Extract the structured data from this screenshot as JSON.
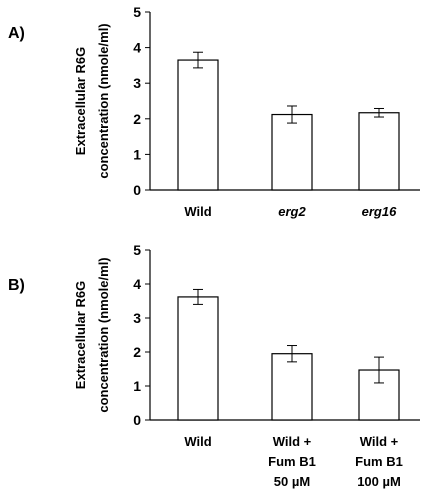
{
  "chart_data": [
    {
      "type": "bar",
      "panel_label": "A)",
      "categories": [
        {
          "lines": [
            "Wild"
          ],
          "italic": false
        },
        {
          "lines": [
            "erg2"
          ],
          "italic": true
        },
        {
          "lines": [
            "erg16"
          ],
          "italic": true
        }
      ],
      "values": [
        3.65,
        2.12,
        2.17
      ],
      "errors": [
        0.22,
        0.24,
        0.12
      ],
      "ylabel_lines": [
        "Extracellular R6G",
        "concentration (nmole/ml)"
      ],
      "ylim": [
        0,
        5
      ],
      "yticks": [
        "0",
        "1",
        "2",
        "3",
        "4",
        "5"
      ],
      "bar_color": "#ffffff",
      "grid": false
    },
    {
      "type": "bar",
      "panel_label": "B)",
      "categories": [
        {
          "lines": [
            "Wild"
          ],
          "italic": false
        },
        {
          "lines": [
            "Wild +",
            "Fum B1",
            "50 µM"
          ],
          "italic": false
        },
        {
          "lines": [
            "Wild +",
            "Fum B1",
            "100 µM"
          ],
          "italic": false
        }
      ],
      "values": [
        3.62,
        1.95,
        1.47
      ],
      "errors": [
        0.22,
        0.24,
        0.38
      ],
      "ylabel_lines": [
        "Extracellular R6G",
        "concentration (nmole/ml)"
      ],
      "ylim": [
        0,
        5
      ],
      "yticks": [
        "0",
        "1",
        "2",
        "3",
        "4",
        "5"
      ],
      "bar_color": "#ffffff",
      "grid": false
    }
  ]
}
